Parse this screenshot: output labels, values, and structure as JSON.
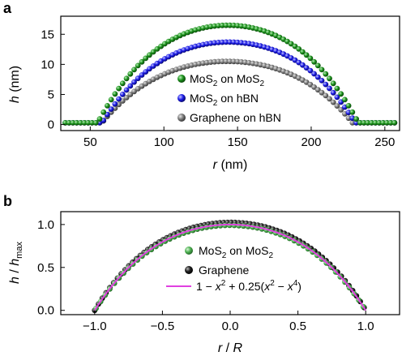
{
  "panel_a": {
    "label": "a",
    "ylabel": {
      "var": "h",
      "unit": "(nm)"
    },
    "xlabel": {
      "var": "r",
      "unit": "(nm)"
    },
    "xticks": [
      "50",
      "100",
      "150",
      "200",
      "250"
    ],
    "yticks": [
      "0",
      "5",
      "10",
      "15"
    ],
    "legend": [
      {
        "pre": "MoS",
        "sub": "2",
        "post": " on MoS",
        "sub2": "2",
        "color": "#1a8f1a"
      },
      {
        "pre": "MoS",
        "sub": "2",
        "post": " on hBN",
        "sub2": "",
        "color": "#1a1ae6"
      },
      {
        "pre": "Graphene on hBN",
        "sub": "",
        "post": "",
        "sub2": "",
        "color": "#7a7a7a"
      }
    ]
  },
  "panel_b": {
    "label": "b",
    "ylabel": {
      "num": "h",
      "den": "h",
      "den_sub": "max"
    },
    "xlabel": {
      "num": "r",
      "den": "R"
    },
    "xticks": [
      "−1.0",
      "−0.5",
      "0.0",
      "0.5",
      "1.0"
    ],
    "yticks": [
      "0.0",
      "0.5",
      "1.0"
    ],
    "legend": [
      {
        "pre": "MoS",
        "sub": "2",
        "post": " on MoS",
        "sub2": "2",
        "color": "#4caf50"
      },
      {
        "pre": "Graphene",
        "sub": "",
        "post": "",
        "sub2": "",
        "color": "#111111"
      }
    ],
    "fit_label": {
      "a": "1 − ",
      "b": "x",
      "c": "2",
      "d": " + 0.25(",
      "e": "x",
      "f": "2",
      "g": " − ",
      "h": "x",
      "i": "4",
      "j": ")"
    },
    "fit_color": "#e040e0"
  },
  "chart_data": [
    {
      "type": "scatter",
      "xlim": [
        30,
        260
      ],
      "ylim": [
        -1,
        18
      ],
      "series": [
        {
          "name": "MoS2 on MoS2",
          "color": "#1a8f1a",
          "r_edges": [
            55,
            232
          ],
          "h_max": 16.5,
          "baseline": 0.3
        },
        {
          "name": "MoS2 on hBN",
          "color": "#1a1ae6",
          "r_edges": [
            58,
            230
          ],
          "h_max": 13.7,
          "baseline": 0.3
        },
        {
          "name": "Graphene on hBN",
          "color": "#7a7a7a",
          "r_edges": [
            58,
            228
          ],
          "h_max": 10.5,
          "baseline": 0.3
        }
      ]
    },
    {
      "type": "scatter",
      "xlim": [
        -1.25,
        1.25
      ],
      "ylim": [
        -0.05,
        1.15
      ],
      "series": [
        {
          "name": "MoS2 on MoS2",
          "color": "#4caf50"
        },
        {
          "name": "Graphene",
          "color": "#111111"
        },
        {
          "name": "1 − x^2 + 0.25(x^2 − x^4)",
          "color": "#e040e0",
          "kind": "line"
        }
      ]
    }
  ]
}
